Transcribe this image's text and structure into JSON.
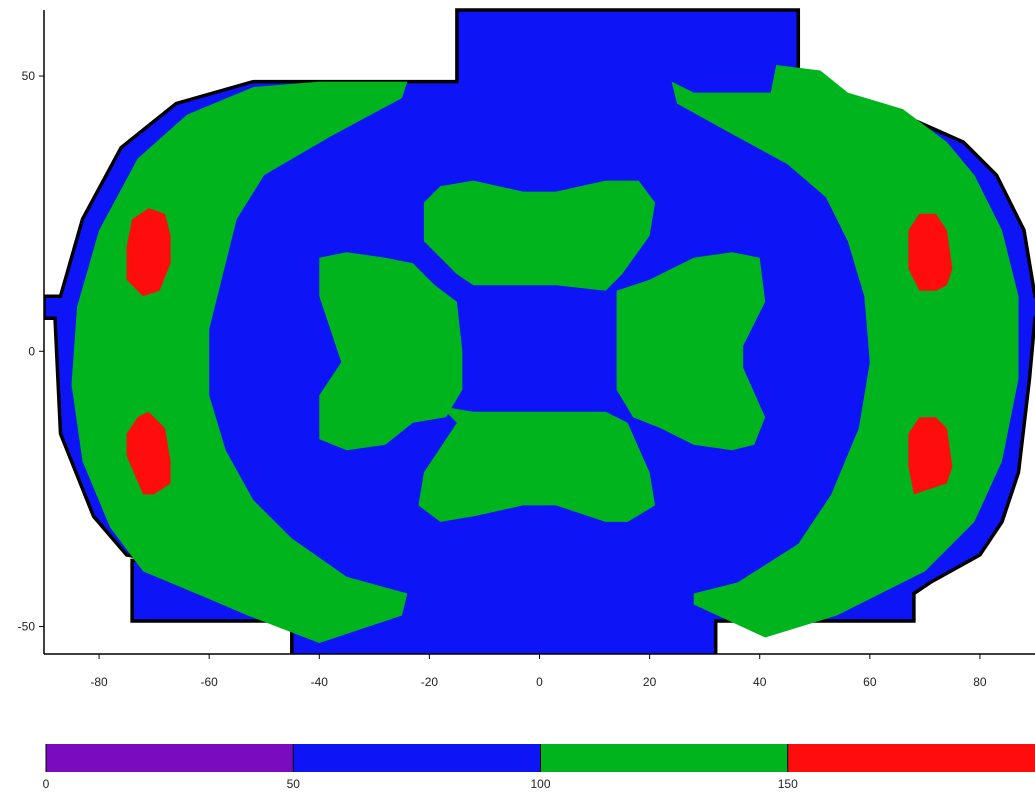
{
  "chart_data": {
    "type": "heatmap",
    "title": "",
    "xlabel": "",
    "ylabel": "",
    "xlim": [
      -90,
      90
    ],
    "ylim": [
      -55,
      62
    ],
    "grid": false,
    "x_ticks": [
      -80,
      -60,
      -40,
      -20,
      0,
      20,
      40,
      60,
      80
    ],
    "y_ticks": [
      50,
      0,
      -50
    ],
    "colors": {
      "band_0_50": "#7b0bbf",
      "band_50_100": "#0d14f5",
      "band_100_150": "#00b41e",
      "band_150_up": "#ff0d0d",
      "outline": "#000000"
    },
    "colorbar": {
      "placement": "bottom",
      "labels": [
        "0",
        "50",
        "100",
        "150"
      ],
      "bands": [
        {
          "from": 0,
          "to": 50,
          "color": "#7b0bbf"
        },
        {
          "from": 50,
          "to": 100,
          "color": "#0d14f5"
        },
        {
          "from": 100,
          "to": 150,
          "color": "#00b41e"
        },
        {
          "from": 150,
          "to": 200,
          "color": "#ff0d0d"
        }
      ]
    },
    "regions": [
      {
        "name": "domain",
        "level": "50-100",
        "color": "#0d14f5",
        "outline": true,
        "points": [
          [
            -15,
            62
          ],
          [
            47,
            62
          ],
          [
            47,
            49
          ],
          [
            58,
            45
          ],
          [
            68,
            42
          ],
          [
            77,
            38
          ],
          [
            83,
            32
          ],
          [
            88,
            22
          ],
          [
            90,
            10
          ],
          [
            92,
            10
          ],
          [
            92,
            6
          ],
          [
            90,
            6
          ],
          [
            89,
            -5
          ],
          [
            87,
            -22
          ],
          [
            84,
            -31
          ],
          [
            80,
            -37
          ],
          [
            71,
            -42
          ],
          [
            68,
            -44
          ],
          [
            68,
            -49
          ],
          [
            32,
            -49
          ],
          [
            32,
            -56
          ],
          [
            -45,
            -56
          ],
          [
            -45,
            -49
          ],
          [
            -74,
            -49
          ],
          [
            -74,
            -38
          ],
          [
            -70,
            -38
          ],
          [
            -75,
            -37
          ],
          [
            -81,
            -30
          ],
          [
            -87,
            -15
          ],
          [
            -88,
            6
          ],
          [
            -90,
            6
          ],
          [
            -90,
            10
          ],
          [
            -87,
            10
          ],
          [
            -83,
            24
          ],
          [
            -76,
            37
          ],
          [
            -66,
            45
          ],
          [
            -52,
            49
          ],
          [
            -15,
            49
          ]
        ]
      },
      {
        "name": "green-left-arc",
        "level": "100-150",
        "color": "#00b41e",
        "points": [
          [
            -24,
            49
          ],
          [
            -25,
            46
          ],
          [
            -38,
            39
          ],
          [
            -50,
            32
          ],
          [
            -55,
            24
          ],
          [
            -57,
            16
          ],
          [
            -60,
            4
          ],
          [
            -60,
            -8
          ],
          [
            -57,
            -18
          ],
          [
            -52,
            -27
          ],
          [
            -45,
            -34
          ],
          [
            -35,
            -41
          ],
          [
            -24,
            -44
          ],
          [
            -25,
            -48
          ],
          [
            -40,
            -53
          ],
          [
            -53,
            -48
          ],
          [
            -60,
            -45
          ],
          [
            -72,
            -40
          ],
          [
            -78,
            -32
          ],
          [
            -83,
            -20
          ],
          [
            -85,
            -6
          ],
          [
            -84,
            8
          ],
          [
            -80,
            22
          ],
          [
            -73,
            35
          ],
          [
            -64,
            43
          ],
          [
            -52,
            48
          ],
          [
            -40,
            49
          ]
        ]
      },
      {
        "name": "green-right-arc",
        "level": "100-150",
        "color": "#00b41e",
        "points": [
          [
            24,
            49
          ],
          [
            28,
            47
          ],
          [
            42,
            47
          ],
          [
            43,
            52
          ],
          [
            51,
            51
          ],
          [
            56,
            47
          ],
          [
            66,
            44
          ],
          [
            74,
            38
          ],
          [
            79,
            32
          ],
          [
            84,
            22
          ],
          [
            87,
            10
          ],
          [
            87,
            -5
          ],
          [
            84,
            -20
          ],
          [
            79,
            -31
          ],
          [
            70,
            -40
          ],
          [
            60,
            -45
          ],
          [
            54,
            -48
          ],
          [
            41,
            -52
          ],
          [
            28,
            -46
          ],
          [
            28,
            -44
          ],
          [
            36,
            -42
          ],
          [
            47,
            -35
          ],
          [
            53,
            -26
          ],
          [
            58,
            -14
          ],
          [
            60,
            -2
          ],
          [
            59,
            10
          ],
          [
            56,
            20
          ],
          [
            52,
            28
          ],
          [
            45,
            34
          ],
          [
            34,
            40
          ],
          [
            25,
            45
          ]
        ]
      },
      {
        "name": "green-top-lobe",
        "level": "100-150",
        "color": "#00b41e",
        "points": [
          [
            -18,
            30
          ],
          [
            -12,
            31
          ],
          [
            -3,
            29
          ],
          [
            3,
            29
          ],
          [
            12,
            31
          ],
          [
            18,
            31
          ],
          [
            21,
            27
          ],
          [
            20,
            21
          ],
          [
            15,
            14
          ],
          [
            12,
            11
          ],
          [
            3,
            12
          ],
          [
            -3,
            12
          ],
          [
            -12,
            12
          ],
          [
            -15,
            14
          ],
          [
            -21,
            20
          ],
          [
            -21,
            27
          ]
        ]
      },
      {
        "name": "green-bottom-lobe",
        "level": "100-150",
        "color": "#00b41e",
        "points": [
          [
            -18,
            -10
          ],
          [
            -12,
            -11
          ],
          [
            -3,
            -11
          ],
          [
            3,
            -11
          ],
          [
            12,
            -11
          ],
          [
            16,
            -13
          ],
          [
            20,
            -22
          ],
          [
            21,
            -28
          ],
          [
            16,
            -31
          ],
          [
            12,
            -31
          ],
          [
            3,
            -28
          ],
          [
            -3,
            -28
          ],
          [
            -12,
            -30
          ],
          [
            -18,
            -31
          ],
          [
            -22,
            -28
          ],
          [
            -21,
            -22
          ],
          [
            -15,
            -13
          ]
        ]
      },
      {
        "name": "green-left-lobe",
        "level": "100-150",
        "color": "#00b41e",
        "points": [
          [
            -40,
            17
          ],
          [
            -35,
            18
          ],
          [
            -28,
            17
          ],
          [
            -23,
            16
          ],
          [
            -19,
            12
          ],
          [
            -15,
            9
          ],
          [
            -14,
            0
          ],
          [
            -14,
            -7
          ],
          [
            -17,
            -12
          ],
          [
            -23,
            -13
          ],
          [
            -28,
            -17
          ],
          [
            -35,
            -18
          ],
          [
            -40,
            -16
          ],
          [
            -40,
            -8
          ],
          [
            -36,
            -2
          ],
          [
            -37,
            1
          ],
          [
            -40,
            10
          ]
        ]
      },
      {
        "name": "green-right-lobe",
        "level": "100-150",
        "color": "#00b41e",
        "points": [
          [
            14,
            11
          ],
          [
            20,
            13
          ],
          [
            28,
            17
          ],
          [
            35,
            18
          ],
          [
            40,
            17
          ],
          [
            41,
            9
          ],
          [
            37,
            1
          ],
          [
            37,
            -3
          ],
          [
            41,
            -12
          ],
          [
            39,
            -17
          ],
          [
            35,
            -18
          ],
          [
            28,
            -17
          ],
          [
            22,
            -14
          ],
          [
            17,
            -12
          ],
          [
            14,
            -7
          ],
          [
            14,
            0
          ]
        ]
      },
      {
        "name": "red-left-upper",
        "level": "150+",
        "color": "#ff0d0d",
        "points": [
          [
            -71,
            26
          ],
          [
            -68,
            25
          ],
          [
            -67,
            21
          ],
          [
            -67,
            16
          ],
          [
            -69,
            11
          ],
          [
            -72,
            10
          ],
          [
            -75,
            13
          ],
          [
            -75,
            19
          ],
          [
            -74,
            24
          ]
        ]
      },
      {
        "name": "red-left-lower",
        "level": "150+",
        "color": "#ff0d0d",
        "points": [
          [
            -71,
            -11
          ],
          [
            -68,
            -14
          ],
          [
            -67,
            -20
          ],
          [
            -67,
            -24
          ],
          [
            -70,
            -26
          ],
          [
            -72,
            -26
          ],
          [
            -75,
            -19
          ],
          [
            -75,
            -15
          ],
          [
            -73,
            -12
          ]
        ]
      },
      {
        "name": "red-right-upper",
        "level": "150+",
        "color": "#ff0d0d",
        "points": [
          [
            69,
            25
          ],
          [
            72,
            25
          ],
          [
            74,
            22
          ],
          [
            75,
            15
          ],
          [
            74,
            12
          ],
          [
            72,
            11
          ],
          [
            69,
            11
          ],
          [
            67,
            15
          ],
          [
            67,
            22
          ]
        ]
      },
      {
        "name": "red-right-lower",
        "level": "150+",
        "color": "#ff0d0d",
        "points": [
          [
            69,
            -12
          ],
          [
            72,
            -12
          ],
          [
            74,
            -14
          ],
          [
            75,
            -21
          ],
          [
            74,
            -24
          ],
          [
            71,
            -25
          ],
          [
            68,
            -26
          ],
          [
            67,
            -21
          ],
          [
            67,
            -15
          ]
        ]
      }
    ]
  }
}
